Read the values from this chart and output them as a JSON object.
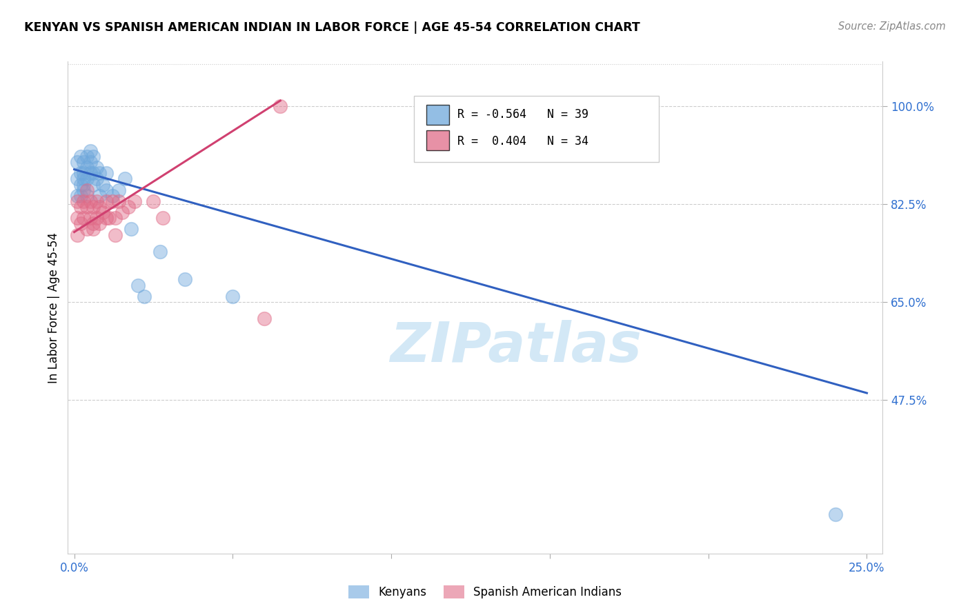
{
  "title": "KENYAN VS SPANISH AMERICAN INDIAN IN LABOR FORCE | AGE 45-54 CORRELATION CHART",
  "source": "Source: ZipAtlas.com",
  "ylabel": "In Labor Force | Age 45-54",
  "xlim": [
    -0.002,
    0.255
  ],
  "ylim": [
    0.2,
    1.08
  ],
  "x_tick_positions": [
    0.0,
    0.05,
    0.1,
    0.15,
    0.2,
    0.25
  ],
  "x_tick_labels": [
    "0.0%",
    "",
    "",
    "",
    "",
    "25.0%"
  ],
  "y_tick_positions": [
    0.475,
    0.65,
    0.825,
    1.0
  ],
  "y_tick_labels": [
    "47.5%",
    "65.0%",
    "82.5%",
    "100.0%"
  ],
  "kenyan_R": -0.564,
  "kenyan_N": 39,
  "spanish_R": 0.404,
  "spanish_N": 34,
  "kenyan_color": "#6fa8dc",
  "spanish_color": "#e06c88",
  "kenyan_line_color": "#3060c0",
  "spanish_line_color": "#d04070",
  "watermark": "ZIPatlas",
  "kenyan_x": [
    0.001,
    0.001,
    0.001,
    0.002,
    0.002,
    0.002,
    0.002,
    0.003,
    0.003,
    0.003,
    0.003,
    0.003,
    0.004,
    0.004,
    0.004,
    0.004,
    0.005,
    0.005,
    0.005,
    0.006,
    0.006,
    0.006,
    0.007,
    0.007,
    0.008,
    0.008,
    0.009,
    0.01,
    0.01,
    0.012,
    0.014,
    0.016,
    0.018,
    0.02,
    0.022,
    0.027,
    0.035,
    0.05,
    0.24
  ],
  "kenyan_y": [
    0.84,
    0.87,
    0.9,
    0.86,
    0.88,
    0.84,
    0.91,
    0.86,
    0.88,
    0.9,
    0.85,
    0.87,
    0.89,
    0.91,
    0.84,
    0.87,
    0.9,
    0.92,
    0.88,
    0.86,
    0.88,
    0.91,
    0.87,
    0.89,
    0.88,
    0.84,
    0.86,
    0.85,
    0.88,
    0.84,
    0.85,
    0.87,
    0.78,
    0.68,
    0.66,
    0.74,
    0.69,
    0.66,
    0.27
  ],
  "spanish_x": [
    0.001,
    0.001,
    0.001,
    0.002,
    0.002,
    0.003,
    0.003,
    0.004,
    0.004,
    0.004,
    0.005,
    0.005,
    0.006,
    0.006,
    0.006,
    0.007,
    0.007,
    0.008,
    0.008,
    0.009,
    0.01,
    0.01,
    0.011,
    0.012,
    0.013,
    0.013,
    0.014,
    0.015,
    0.017,
    0.019,
    0.025,
    0.028,
    0.06,
    0.065
  ],
  "spanish_y": [
    0.83,
    0.8,
    0.77,
    0.82,
    0.79,
    0.83,
    0.8,
    0.78,
    0.82,
    0.85,
    0.8,
    0.83,
    0.78,
    0.82,
    0.79,
    0.83,
    0.8,
    0.82,
    0.79,
    0.81,
    0.8,
    0.83,
    0.8,
    0.83,
    0.8,
    0.77,
    0.83,
    0.81,
    0.82,
    0.83,
    0.83,
    0.8,
    0.62,
    1.0
  ],
  "kenyan_trendline_x": [
    0.0,
    0.25
  ],
  "kenyan_trendline_y": [
    0.887,
    0.487
  ],
  "spanish_trendline_x": [
    0.0,
    0.065
  ],
  "spanish_trendline_y": [
    0.775,
    1.01
  ]
}
